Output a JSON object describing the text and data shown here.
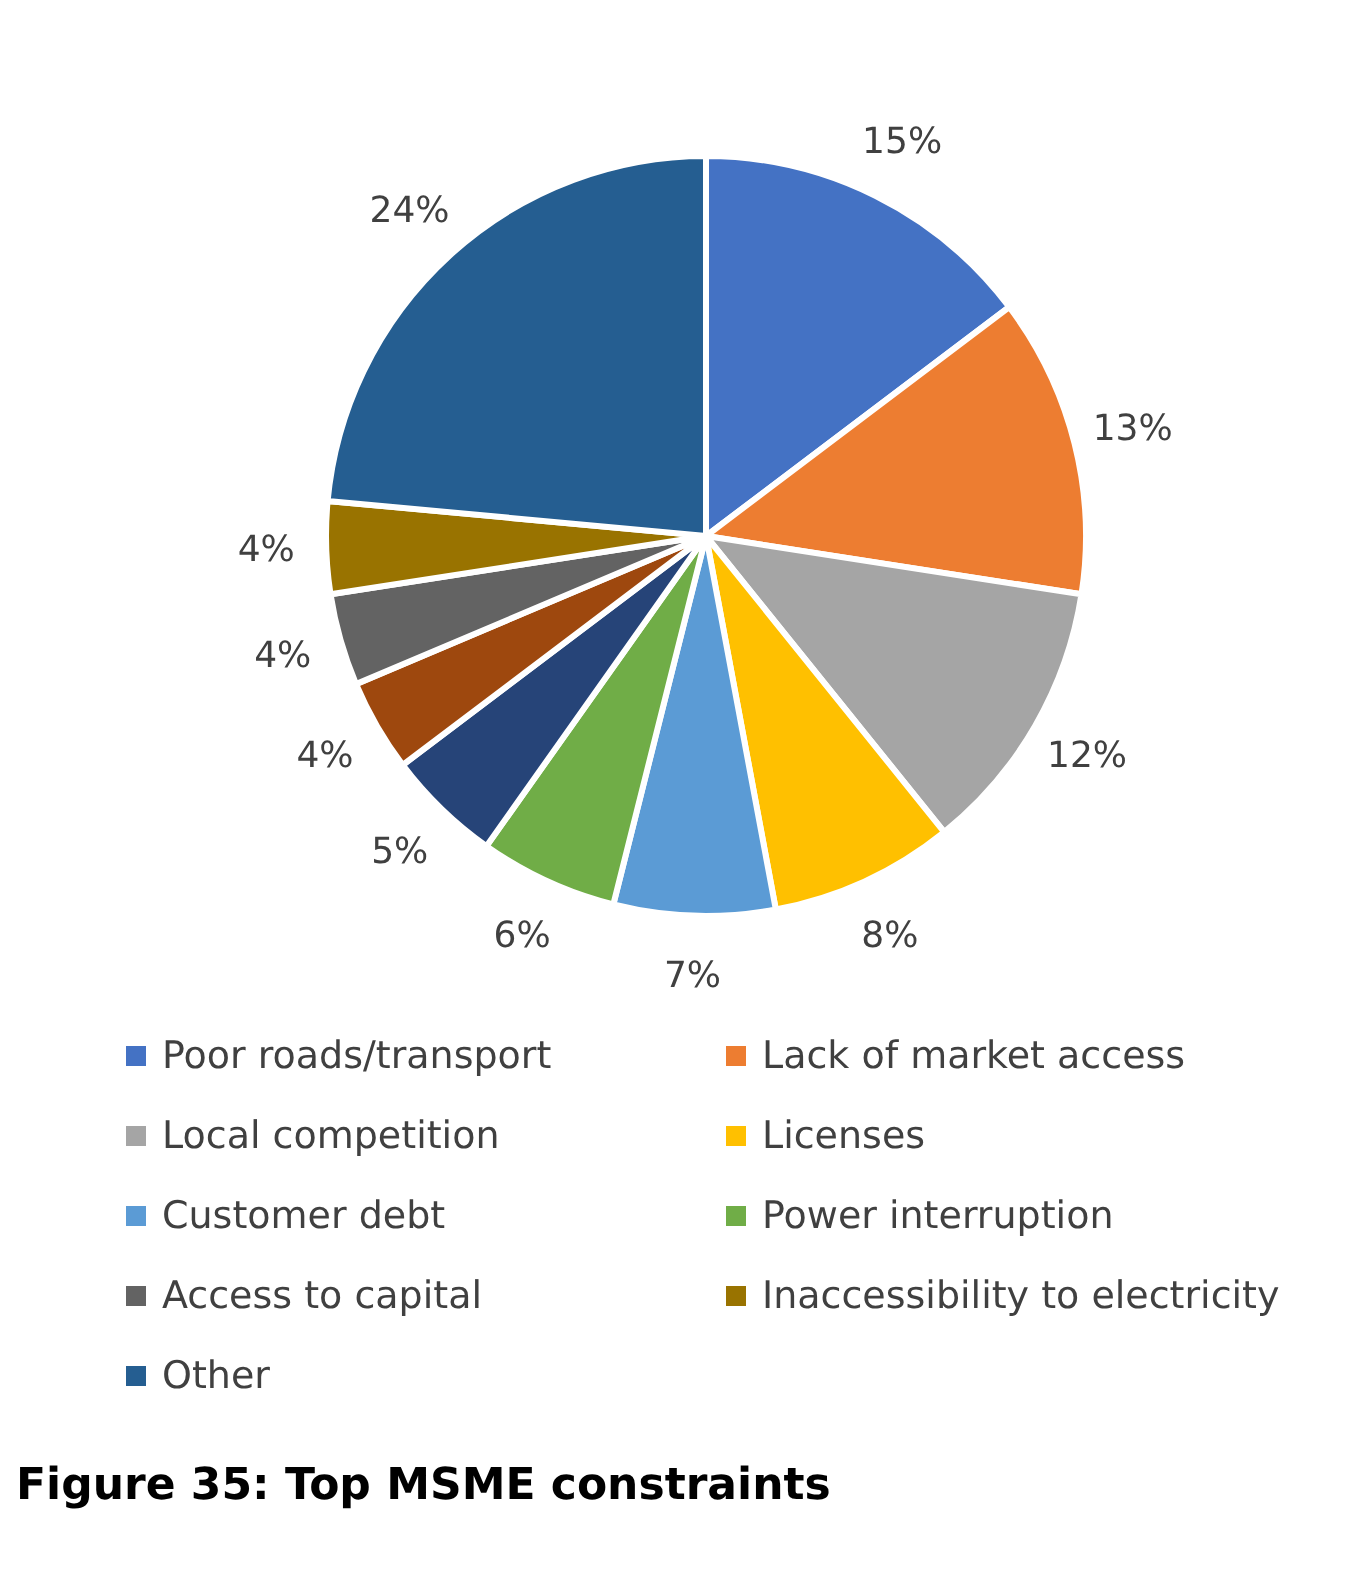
{
  "chart_data": {
    "type": "pie",
    "title": "Figure 35: Top MSME constraints",
    "categories": [
      "Poor roads/transport",
      "Lack of market access",
      "Local competition",
      "Licenses",
      "Customer debt",
      "Power interruption",
      null,
      null,
      "Access to capital",
      "Inaccessibility to electricity",
      "Other"
    ],
    "values": [
      15,
      13,
      12,
      8,
      7,
      6,
      5,
      4,
      4,
      4,
      24
    ],
    "colors": [
      "#4472c4",
      "#ed7d31",
      "#a5a5a5",
      "#ffc000",
      "#5b9bd5",
      "#70ad47",
      "#264478",
      "#9e480e",
      "#636363",
      "#997300",
      "#255e91"
    ],
    "value_labels": [
      "15%",
      "13%",
      "12%",
      "8%",
      "7%",
      "6%",
      "5%",
      "4%",
      "4%",
      "4%",
      "24%"
    ],
    "legend": "bottom"
  }
}
